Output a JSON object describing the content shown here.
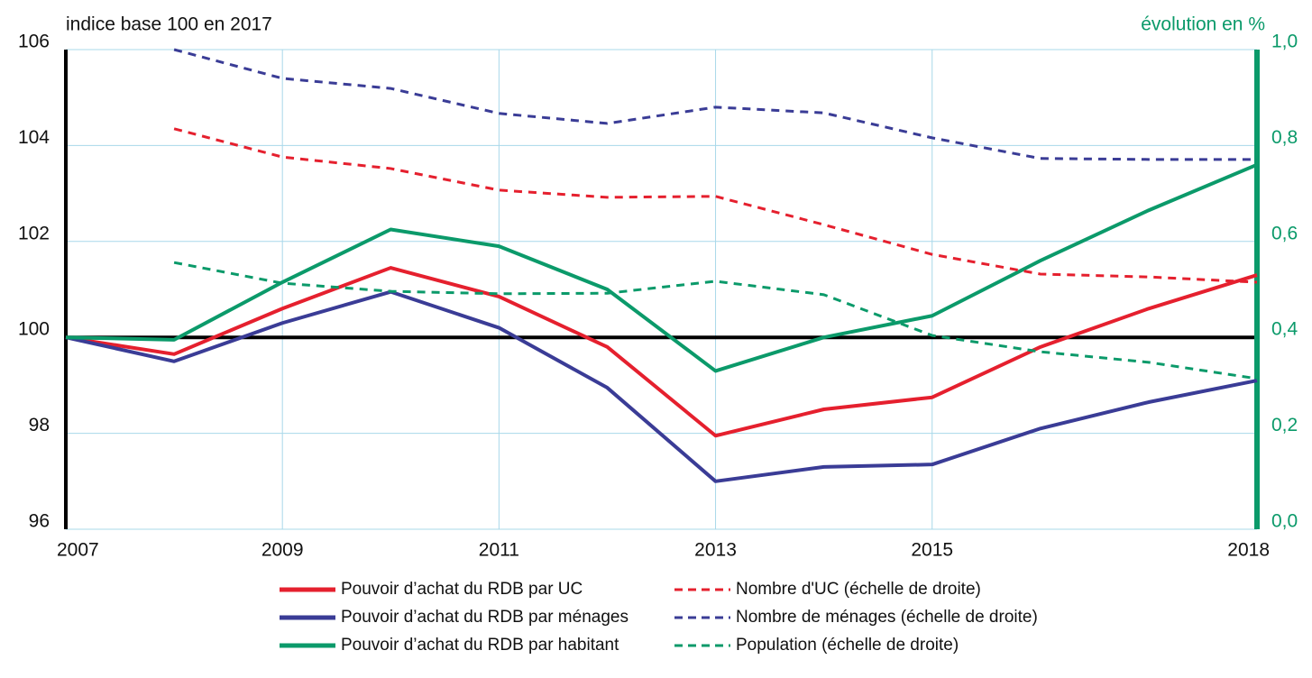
{
  "chart_data": {
    "type": "line",
    "ylabel": "indice base 100 en 2017",
    "y2label": "évolution en %",
    "x": [
      2007,
      2008,
      2009,
      2010,
      2011,
      2012,
      2013,
      2014,
      2015,
      2016,
      2017,
      2018
    ],
    "xlim": [
      2007,
      2018
    ],
    "xticks": [
      2007,
      2009,
      2011,
      2013,
      2015,
      2018
    ],
    "ylim": [
      96,
      106
    ],
    "yticks": [
      96,
      98,
      100,
      102,
      104,
      106
    ],
    "y2lim": [
      0,
      1
    ],
    "y2ticks": [
      {
        "value": 0,
        "label": "0,0"
      },
      {
        "value": 0.2,
        "label": "0,2"
      },
      {
        "value": 0.4,
        "label": "0,4"
      },
      {
        "value": 0.6,
        "label": "0,6"
      },
      {
        "value": 0.8,
        "label": "0,8"
      },
      {
        "value": 1,
        "label": "1,0"
      }
    ],
    "reference_line": 100,
    "grid": true,
    "series": [
      {
        "name": "Pouvoir d’achat du RDB par UC",
        "color": "#e5202e",
        "values": [
          100,
          99.65,
          100.6,
          101.45,
          100.85,
          99.8,
          97.95,
          98.5,
          98.75,
          99.8,
          100.6,
          101.3
        ]
      },
      {
        "name": "Pouvoir d’achat du RDB par ménages",
        "color": "#3a3c96",
        "values": [
          100,
          99.5,
          100.3,
          100.95,
          100.2,
          98.95,
          97.0,
          97.3,
          97.35,
          98.1,
          98.65,
          99.1
        ]
      },
      {
        "name": "Pouvoir d’achat du RDB par habitant",
        "color": "#0b9a6a",
        "values": [
          100,
          99.95,
          101.15,
          102.25,
          101.9,
          101.0,
          99.3,
          100.0,
          100.45,
          101.6,
          102.65,
          103.6
        ]
      },
      {
        "name": "Nombre d'UC (échelle de droite)",
        "color": "#e5202e",
        "dashed": true,
        "axis": "y2",
        "values": [
          null,
          0.835,
          0.776,
          0.752,
          0.707,
          0.692,
          0.694,
          0.635,
          0.573,
          0.532,
          0.526,
          0.515
        ]
      },
      {
        "name": "Nombre de ménages (échelle de droite)",
        "color": "#3a3c96",
        "dashed": true,
        "axis": "y2",
        "values": [
          null,
          1.0,
          0.94,
          0.919,
          0.867,
          0.846,
          0.88,
          0.868,
          0.816,
          0.773,
          0.771,
          0.771
        ]
      },
      {
        "name": "Population (échelle de droite)",
        "color": "#0b9a6a",
        "dashed": true,
        "axis": "y2",
        "values": [
          null,
          0.556,
          0.513,
          0.496,
          0.491,
          0.492,
          0.517,
          0.489,
          0.404,
          0.37,
          0.348,
          0.314
        ]
      }
    ]
  }
}
